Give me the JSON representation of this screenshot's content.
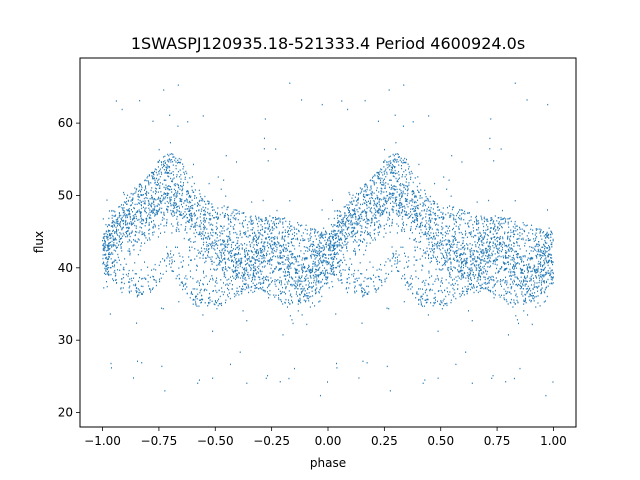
{
  "chart_data": {
    "type": "scatter",
    "title": "1SWASPJ120935.18-521333.4 Period 4600924.0s",
    "xlabel": "phase",
    "ylabel": "flux",
    "xlim": [
      -1.1,
      1.1
    ],
    "ylim": [
      18,
      69
    ],
    "x_ticks": [
      -1.0,
      -0.75,
      -0.5,
      -0.25,
      0.0,
      0.25,
      0.5,
      0.75,
      1.0
    ],
    "x_tick_labels": [
      "−1.00",
      "−0.75",
      "−0.50",
      "−0.25",
      "0.00",
      "0.25",
      "0.50",
      "0.75",
      "1.00"
    ],
    "y_ticks": [
      20,
      30,
      40,
      50,
      60
    ],
    "y_tick_labels": [
      "20",
      "30",
      "40",
      "50",
      "60"
    ],
    "grid": false,
    "marker_color": "#1f77b4",
    "series": [
      {
        "phase_mean_flux": {
          "x": [
            -1.0,
            -0.95,
            -0.9,
            -0.85,
            -0.8,
            -0.75,
            -0.7,
            -0.65,
            -0.6,
            -0.55,
            -0.5,
            -0.45,
            -0.4,
            -0.35,
            -0.3,
            -0.25,
            -0.2,
            -0.15,
            -0.1,
            -0.05,
            0.0
          ],
          "y": [
            42,
            44.5,
            46,
            47,
            47.5,
            49,
            50,
            49,
            46,
            44,
            43,
            42,
            41,
            41,
            42,
            42.5,
            41,
            39.5,
            39,
            40,
            41
          ]
        },
        "phase_upper_flux": {
          "x": [
            -1.0,
            -0.9,
            -0.8,
            -0.75,
            -0.7,
            -0.65,
            -0.6,
            -0.5,
            -0.4,
            -0.3,
            -0.2,
            -0.1,
            0.0
          ],
          "y": [
            44,
            49,
            53,
            55,
            56,
            55,
            51,
            49,
            48,
            47,
            47,
            46,
            45
          ]
        },
        "phase_lower_flux": {
          "x": [
            -1.0,
            -0.9,
            -0.8,
            -0.75,
            -0.7,
            -0.65,
            -0.6,
            -0.5,
            -0.4,
            -0.3,
            -0.2,
            -0.1,
            0.0
          ],
          "y": [
            40,
            36,
            36,
            38,
            40,
            37,
            35,
            34,
            36,
            37,
            35,
            35,
            38
          ]
        }
      }
    ]
  }
}
